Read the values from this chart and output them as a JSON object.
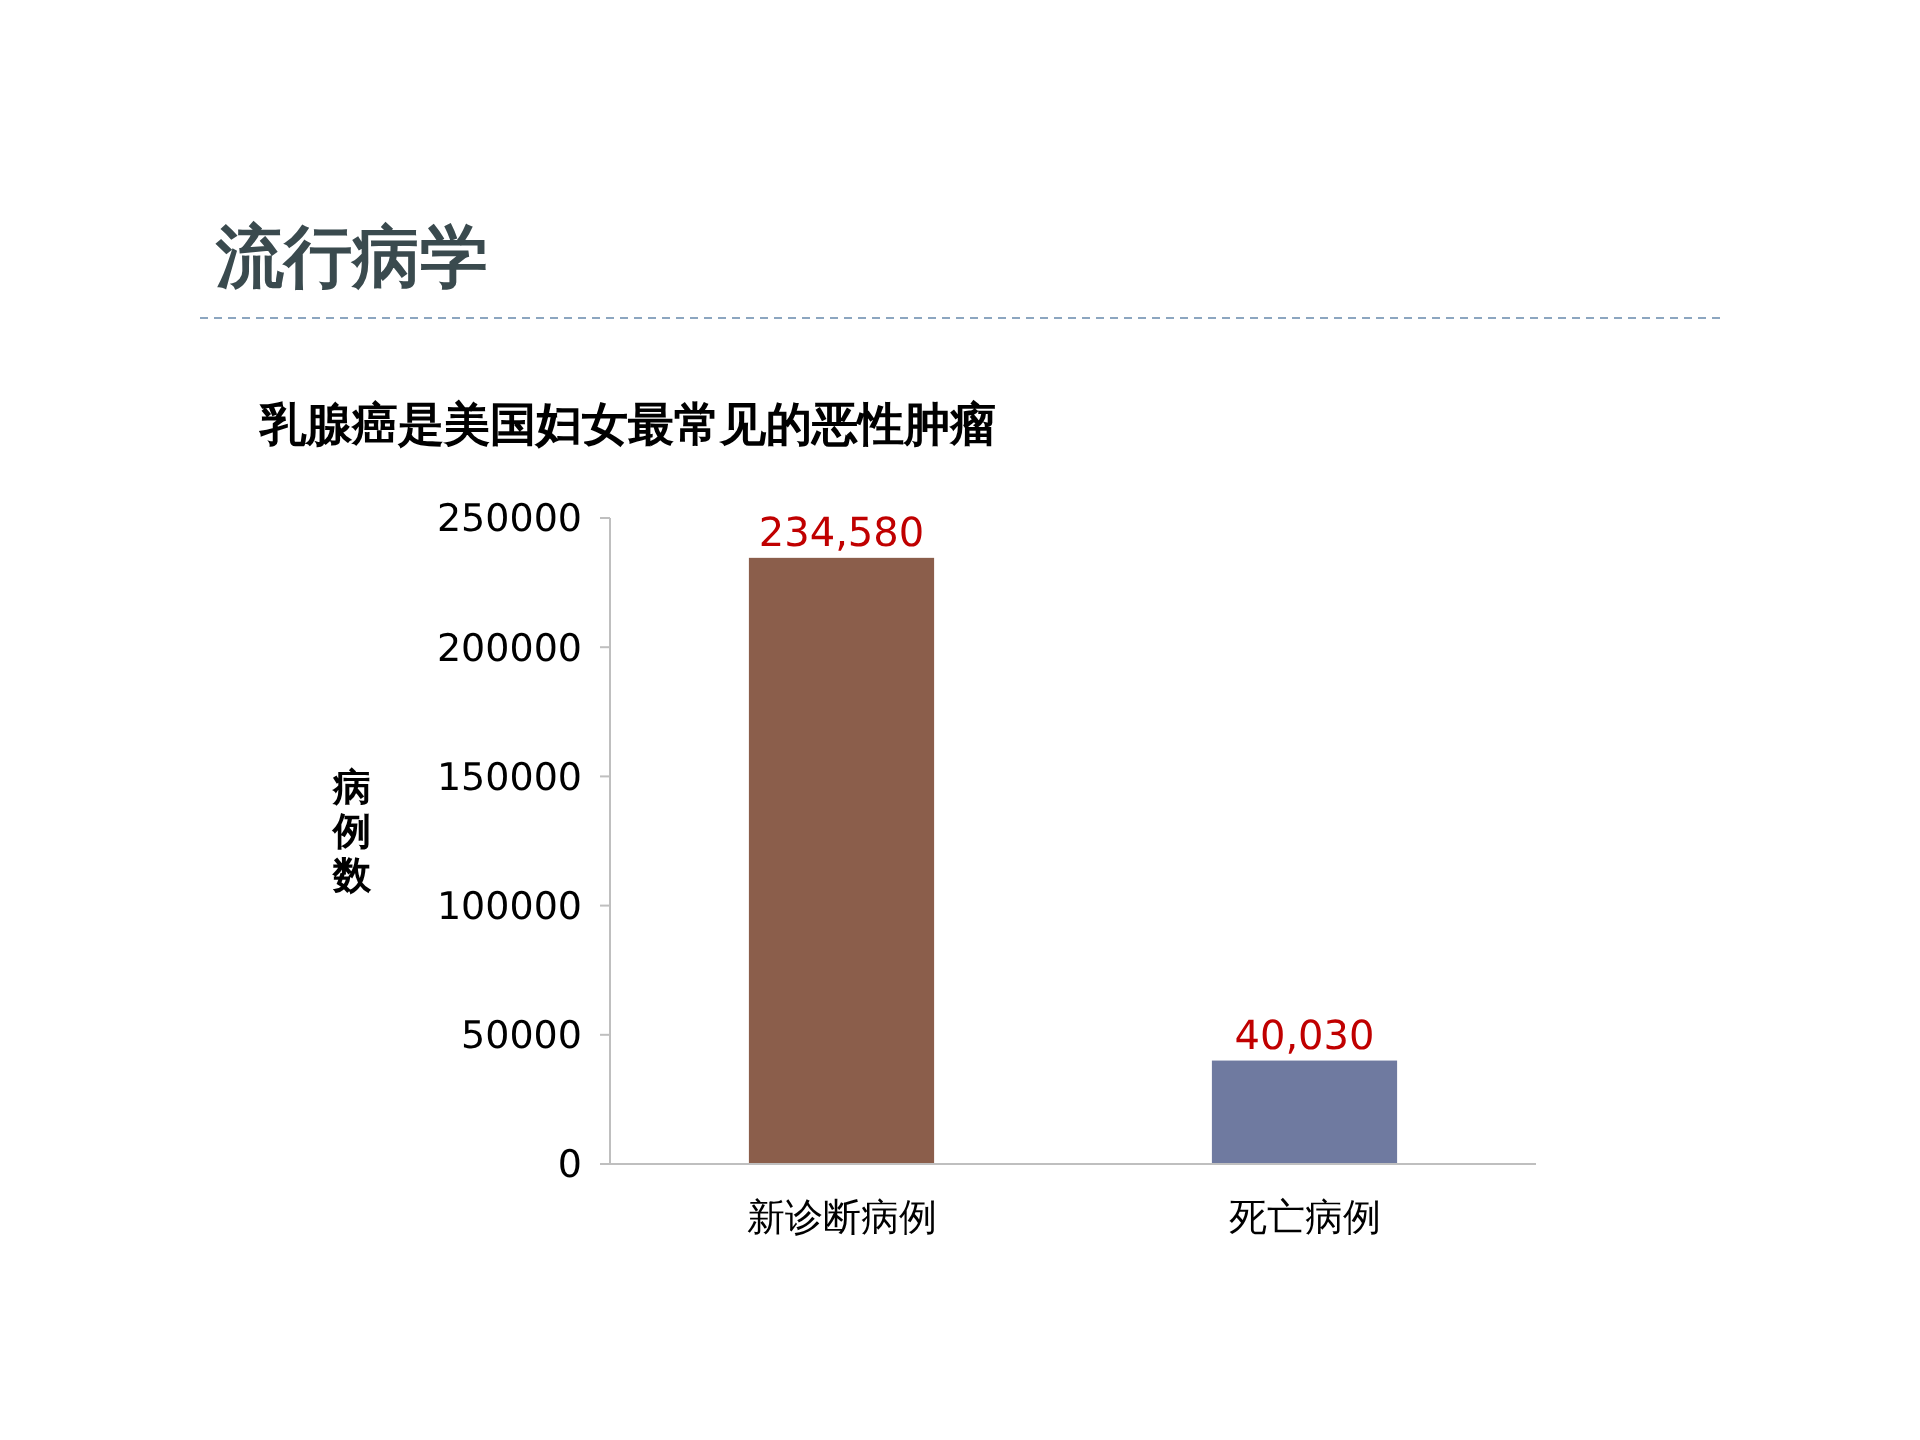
{
  "chart_data": {
    "type": "bar",
    "title": "流行病学",
    "subtitle": "乳腺癌是美国妇女最常见的恶性肿瘤",
    "ylabel": "病例数",
    "categories": [
      "新诊断病例",
      "死亡病例"
    ],
    "values": [
      234580,
      40030
    ],
    "colors": [
      "#8b5e4b",
      "#6f7aa0"
    ],
    "value_labels": [
      "234,580",
      "40,030"
    ],
    "ylim": [
      0,
      250000
    ],
    "yticks": [
      0,
      50000,
      100000,
      150000,
      200000,
      250000
    ],
    "grid": false
  }
}
